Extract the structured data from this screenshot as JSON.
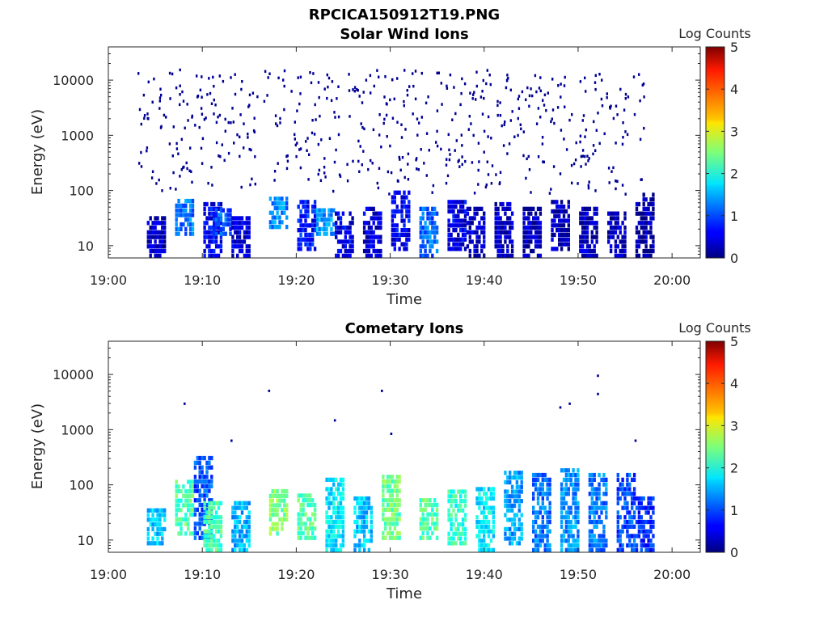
{
  "figure_title": "RPCICA150912T19.PNG",
  "chart_data": [
    {
      "type": "heatmap",
      "title": "Solar Wind Ions",
      "xlabel": "Time",
      "ylabel": "Energy (eV)",
      "xlim": [
        "19:00",
        "20:03"
      ],
      "ylim": [
        6,
        40000
      ],
      "y_scale": "log",
      "x_ticks": [
        "19:00",
        "19:10",
        "19:20",
        "19:30",
        "19:40",
        "19:50",
        "20:00"
      ],
      "y_ticks": [
        "10",
        "100",
        "1000",
        "10000"
      ],
      "colorbar": {
        "label": "Log Counts",
        "range": [
          0,
          5
        ],
        "ticks": [
          "0",
          "1",
          "2",
          "3",
          "4",
          "5"
        ],
        "colormap": "jet"
      },
      "data_time_range": [
        "19:03",
        "19:57"
      ],
      "scatter_energy_range_eV": [
        80,
        15000
      ],
      "band_events": [
        {
          "time": "19:05",
          "energy_low": 6,
          "energy_high": 30,
          "log_counts": 0.3
        },
        {
          "time": "19:08",
          "energy_low": 15,
          "energy_high": 70,
          "log_counts": 1.2
        },
        {
          "time": "19:11",
          "energy_low": 6,
          "energy_high": 60,
          "log_counts": 0.6
        },
        {
          "time": "19:12",
          "energy_low": 15,
          "energy_high": 45,
          "log_counts": 1.0
        },
        {
          "time": "19:14",
          "energy_low": 6,
          "energy_high": 30,
          "log_counts": 0.4
        },
        {
          "time": "19:18",
          "energy_low": 20,
          "energy_high": 70,
          "log_counts": 1.3
        },
        {
          "time": "19:21",
          "energy_low": 8,
          "energy_high": 60,
          "log_counts": 0.7
        },
        {
          "time": "19:23",
          "energy_low": 15,
          "energy_high": 45,
          "log_counts": 1.4
        },
        {
          "time": "19:25",
          "energy_low": 6,
          "energy_high": 40,
          "log_counts": 0.5
        },
        {
          "time": "19:28",
          "energy_low": 6,
          "energy_high": 45,
          "log_counts": 0.4
        },
        {
          "time": "19:31",
          "energy_low": 8,
          "energy_high": 90,
          "log_counts": 0.6
        },
        {
          "time": "19:34",
          "energy_low": 6,
          "energy_high": 45,
          "log_counts": 1.1
        },
        {
          "time": "19:37",
          "energy_low": 8,
          "energy_high": 60,
          "log_counts": 0.5
        },
        {
          "time": "19:39",
          "energy_low": 6,
          "energy_high": 45,
          "log_counts": 0.4
        },
        {
          "time": "19:42",
          "energy_low": 6,
          "energy_high": 60,
          "log_counts": 0.3
        },
        {
          "time": "19:45",
          "energy_low": 6,
          "energy_high": 45,
          "log_counts": 0.3
        },
        {
          "time": "19:48",
          "energy_low": 8,
          "energy_high": 60,
          "log_counts": 0.3
        },
        {
          "time": "19:51",
          "energy_low": 6,
          "energy_high": 45,
          "log_counts": 0.3
        },
        {
          "time": "19:54",
          "energy_low": 6,
          "energy_high": 40,
          "log_counts": 0.3
        },
        {
          "time": "19:57",
          "energy_low": 6,
          "energy_high": 80,
          "log_counts": 0.2
        }
      ]
    },
    {
      "type": "heatmap",
      "title": "Cometary Ions",
      "xlabel": "Time",
      "ylabel": "Energy (eV)",
      "xlim": [
        "19:00",
        "20:03"
      ],
      "ylim": [
        6,
        40000
      ],
      "y_scale": "log",
      "x_ticks": [
        "19:00",
        "19:10",
        "19:20",
        "19:30",
        "19:40",
        "19:50",
        "20:00"
      ],
      "y_ticks": [
        "10",
        "100",
        "1000",
        "10000"
      ],
      "colorbar": {
        "label": "Log Counts",
        "range": [
          0,
          5
        ],
        "ticks": [
          "0",
          "1",
          "2",
          "3",
          "4",
          "5"
        ],
        "colormap": "jet"
      },
      "data_time_range": [
        "19:04",
        "19:57"
      ],
      "band_events": [
        {
          "time": "19:05",
          "energy_low": 8,
          "energy_high": 35,
          "log_counts": 1.6
        },
        {
          "time": "19:08",
          "energy_low": 12,
          "energy_high": 120,
          "log_counts": 2.3
        },
        {
          "time": "19:10",
          "energy_low": 10,
          "energy_high": 300,
          "log_counts": 1.0
        },
        {
          "time": "19:11",
          "energy_low": 6,
          "energy_high": 50,
          "log_counts": 2.2
        },
        {
          "time": "19:14",
          "energy_low": 6,
          "energy_high": 45,
          "log_counts": 1.5
        },
        {
          "time": "19:18",
          "energy_low": 12,
          "energy_high": 80,
          "log_counts": 2.5
        },
        {
          "time": "19:21",
          "energy_low": 10,
          "energy_high": 70,
          "log_counts": 2.3
        },
        {
          "time": "19:24",
          "energy_low": 6,
          "energy_high": 130,
          "log_counts": 1.8
        },
        {
          "time": "19:27",
          "energy_low": 6,
          "energy_high": 60,
          "log_counts": 1.6
        },
        {
          "time": "19:30",
          "energy_low": 10,
          "energy_high": 150,
          "log_counts": 2.4
        },
        {
          "time": "19:34",
          "energy_low": 10,
          "energy_high": 50,
          "log_counts": 2.3
        },
        {
          "time": "19:37",
          "energy_low": 8,
          "energy_high": 80,
          "log_counts": 2.1
        },
        {
          "time": "19:40",
          "energy_low": 6,
          "energy_high": 80,
          "log_counts": 1.8
        },
        {
          "time": "19:43",
          "energy_low": 8,
          "energy_high": 160,
          "log_counts": 1.4
        },
        {
          "time": "19:46",
          "energy_low": 6,
          "energy_high": 150,
          "log_counts": 1.2
        },
        {
          "time": "19:49",
          "energy_low": 6,
          "energy_high": 200,
          "log_counts": 1.3
        },
        {
          "time": "19:52",
          "energy_low": 6,
          "energy_high": 150,
          "log_counts": 1.2
        },
        {
          "time": "19:55",
          "energy_low": 6,
          "energy_high": 140,
          "log_counts": 1.0
        },
        {
          "time": "19:57",
          "energy_low": 6,
          "energy_high": 60,
          "log_counts": 0.8
        }
      ],
      "isolated_points": [
        {
          "time": "19:08",
          "energy": 2800
        },
        {
          "time": "19:13",
          "energy": 600
        },
        {
          "time": "19:17",
          "energy": 4800
        },
        {
          "time": "19:24",
          "energy": 1400
        },
        {
          "time": "19:29",
          "energy": 4800
        },
        {
          "time": "19:30",
          "energy": 800
        },
        {
          "time": "19:48",
          "energy": 2400
        },
        {
          "time": "19:49",
          "energy": 2800
        },
        {
          "time": "19:52",
          "energy": 9000
        },
        {
          "time": "19:52",
          "energy": 4200
        },
        {
          "time": "19:56",
          "energy": 600
        }
      ]
    }
  ]
}
